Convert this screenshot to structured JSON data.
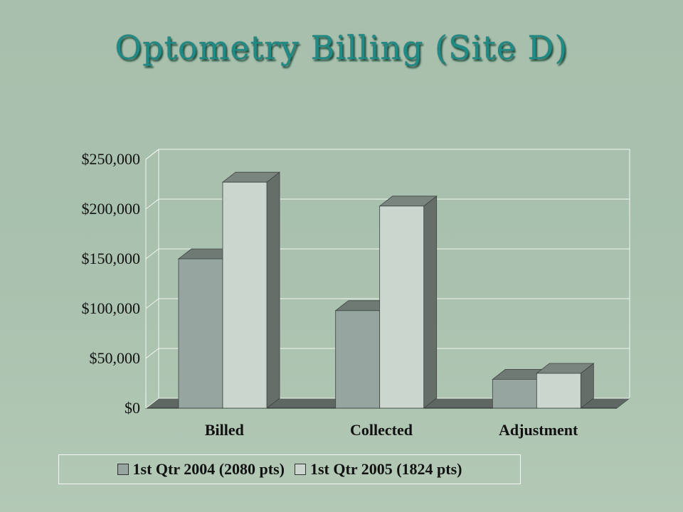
{
  "title": "Optometry Billing (Site D)",
  "colors": {
    "title": "#1f8a86",
    "series_2004_front": "#96a59f",
    "series_2004_top": "#6f7a74",
    "series_2005_front": "#cbd6cf",
    "series_2005_top": "#7b8580",
    "bar_side": "#656e69",
    "grid": "#f2f6f2"
  },
  "chart_data": {
    "type": "bar",
    "categories": [
      "Billed",
      "Collected",
      "Adjustment"
    ],
    "series": [
      {
        "name": "1st Qtr 2004 (2080 pts)",
        "values": [
          150000,
          98000,
          29000
        ]
      },
      {
        "name": "1st Qtr 2005 (1824 pts)",
        "values": [
          227000,
          203000,
          35000
        ]
      }
    ],
    "ylim": [
      0,
      250000
    ],
    "yticks": [
      "$0",
      "$50,000",
      "$100,000",
      "$150,000",
      "$200,000",
      "$250,000"
    ],
    "grid": true,
    "legend_position": "bottom"
  }
}
